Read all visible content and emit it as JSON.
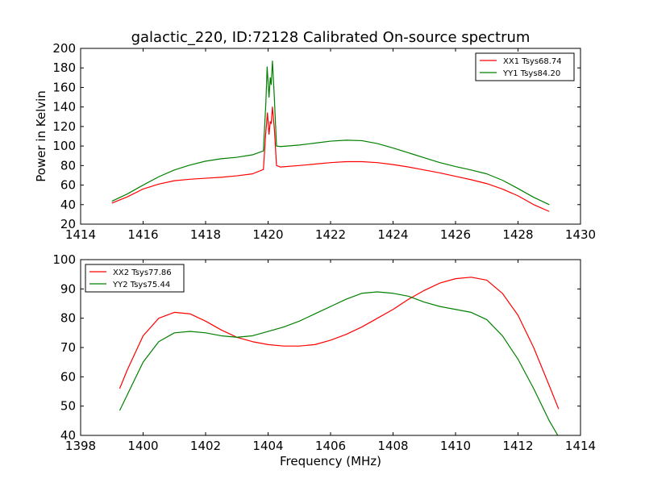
{
  "chart_data": [
    {
      "type": "line",
      "title": "galactic_220, ID:72128 Calibrated On-source spectrum",
      "xlabel": "",
      "ylabel": "Power in Kelvin",
      "xlim": [
        1414,
        1430
      ],
      "ylim": [
        20,
        200
      ],
      "xticks": [
        1414,
        1416,
        1418,
        1420,
        1422,
        1424,
        1426,
        1428,
        1430
      ],
      "yticks": [
        20,
        40,
        60,
        80,
        100,
        120,
        140,
        160,
        180,
        200
      ],
      "grid": false,
      "legend": "top-right",
      "series": [
        {
          "name": "XX1 Tsys68.74",
          "color": "#ff0000",
          "points": [
            [
              1415.0,
              41.5
            ],
            [
              1415.5,
              48
            ],
            [
              1416.0,
              56
            ],
            [
              1416.5,
              61
            ],
            [
              1417.0,
              64.5
            ],
            [
              1417.5,
              66
            ],
            [
              1418.0,
              67
            ],
            [
              1418.5,
              68
            ],
            [
              1419.0,
              69.5
            ],
            [
              1419.5,
              71.5
            ],
            [
              1419.85,
              76
            ],
            [
              1419.93,
              115
            ],
            [
              1419.98,
              134
            ],
            [
              1420.03,
              112
            ],
            [
              1420.07,
              125
            ],
            [
              1420.1,
              123
            ],
            [
              1420.14,
              140
            ],
            [
              1420.2,
              118
            ],
            [
              1420.27,
              80
            ],
            [
              1420.4,
              78.5
            ],
            [
              1421.0,
              80
            ],
            [
              1421.5,
              81.5
            ],
            [
              1422.0,
              83
            ],
            [
              1422.5,
              84
            ],
            [
              1423.0,
              84
            ],
            [
              1423.5,
              83
            ],
            [
              1424.0,
              81
            ],
            [
              1424.5,
              78.5
            ],
            [
              1425.0,
              75.5
            ],
            [
              1425.5,
              72.5
            ],
            [
              1426.0,
              69
            ],
            [
              1426.5,
              65.5
            ],
            [
              1427.0,
              61.5
            ],
            [
              1427.5,
              56
            ],
            [
              1428.0,
              49
            ],
            [
              1428.5,
              40
            ],
            [
              1429.0,
              33
            ]
          ]
        },
        {
          "name": "YY1 Tsys84.20",
          "color": "#008000",
          "points": [
            [
              1415.0,
              43.5
            ],
            [
              1415.5,
              51
            ],
            [
              1416.0,
              60
            ],
            [
              1416.5,
              68.5
            ],
            [
              1417.0,
              75.5
            ],
            [
              1417.5,
              80.5
            ],
            [
              1418.0,
              84.5
            ],
            [
              1418.5,
              87
            ],
            [
              1419.0,
              88.5
            ],
            [
              1419.5,
              91
            ],
            [
              1419.85,
              95
            ],
            [
              1419.93,
              145
            ],
            [
              1419.97,
              181
            ],
            [
              1420.03,
              150
            ],
            [
              1420.07,
              170
            ],
            [
              1420.1,
              163
            ],
            [
              1420.14,
              187
            ],
            [
              1420.2,
              150
            ],
            [
              1420.27,
              100
            ],
            [
              1420.4,
              99.5
            ],
            [
              1421.0,
              101
            ],
            [
              1421.5,
              103
            ],
            [
              1422.0,
              105
            ],
            [
              1422.5,
              106
            ],
            [
              1423.0,
              105.5
            ],
            [
              1423.5,
              102.5
            ],
            [
              1424.0,
              98
            ],
            [
              1424.5,
              93
            ],
            [
              1425.0,
              88
            ],
            [
              1425.5,
              83
            ],
            [
              1426.0,
              79
            ],
            [
              1426.5,
              75.5
            ],
            [
              1427.0,
              71.5
            ],
            [
              1427.5,
              65
            ],
            [
              1428.0,
              56.5
            ],
            [
              1428.5,
              47.5
            ],
            [
              1429.0,
              40
            ]
          ]
        }
      ]
    },
    {
      "type": "line",
      "title": "",
      "xlabel": "Frequency (MHz)",
      "ylabel": "",
      "xlim": [
        1398,
        1414
      ],
      "ylim": [
        40,
        100
      ],
      "xticks": [
        1398,
        1400,
        1402,
        1404,
        1406,
        1408,
        1410,
        1412,
        1414
      ],
      "yticks": [
        40,
        50,
        60,
        70,
        80,
        90,
        100
      ],
      "grid": false,
      "legend": "top-left",
      "series": [
        {
          "name": "XX2 Tsys77.86",
          "color": "#ff0000",
          "points": [
            [
              1399.25,
              56
            ],
            [
              1399.5,
              62.5
            ],
            [
              1400.0,
              74
            ],
            [
              1400.5,
              80
            ],
            [
              1401.0,
              82
            ],
            [
              1401.5,
              81.5
            ],
            [
              1402.0,
              79
            ],
            [
              1402.5,
              76
            ],
            [
              1403.0,
              73.5
            ],
            [
              1403.5,
              72
            ],
            [
              1404.0,
              71
            ],
            [
              1404.5,
              70.5
            ],
            [
              1405.0,
              70.5
            ],
            [
              1405.5,
              71
            ],
            [
              1406.0,
              72.5
            ],
            [
              1406.5,
              74.5
            ],
            [
              1407.0,
              77
            ],
            [
              1407.5,
              80
            ],
            [
              1408.0,
              83
            ],
            [
              1408.5,
              86.5
            ],
            [
              1409.0,
              89.5
            ],
            [
              1409.5,
              92
            ],
            [
              1410.0,
              93.5
            ],
            [
              1410.5,
              94
            ],
            [
              1411.0,
              93
            ],
            [
              1411.5,
              88.5
            ],
            [
              1412.0,
              81
            ],
            [
              1412.5,
              70
            ],
            [
              1413.0,
              57
            ],
            [
              1413.3,
              49
            ]
          ]
        },
        {
          "name": "YY2 Tsys75.44",
          "color": "#008000",
          "points": [
            [
              1399.25,
              48.5
            ],
            [
              1399.5,
              54
            ],
            [
              1400.0,
              65
            ],
            [
              1400.5,
              72
            ],
            [
              1401.0,
              75
            ],
            [
              1401.5,
              75.5
            ],
            [
              1402.0,
              75
            ],
            [
              1402.5,
              74
            ],
            [
              1403.0,
              73.5
            ],
            [
              1403.5,
              74
            ],
            [
              1404.0,
              75.5
            ],
            [
              1404.5,
              77
            ],
            [
              1405.0,
              79
            ],
            [
              1405.5,
              81.5
            ],
            [
              1406.0,
              84
            ],
            [
              1406.5,
              86.5
            ],
            [
              1407.0,
              88.5
            ],
            [
              1407.5,
              89
            ],
            [
              1408.0,
              88.5
            ],
            [
              1408.5,
              87.5
            ],
            [
              1409.0,
              85.5
            ],
            [
              1409.5,
              84
            ],
            [
              1410.0,
              83
            ],
            [
              1410.5,
              82
            ],
            [
              1411.0,
              79.5
            ],
            [
              1411.5,
              74
            ],
            [
              1412.0,
              66
            ],
            [
              1412.5,
              56
            ],
            [
              1413.0,
              45
            ],
            [
              1413.3,
              39.5
            ]
          ]
        }
      ]
    }
  ]
}
